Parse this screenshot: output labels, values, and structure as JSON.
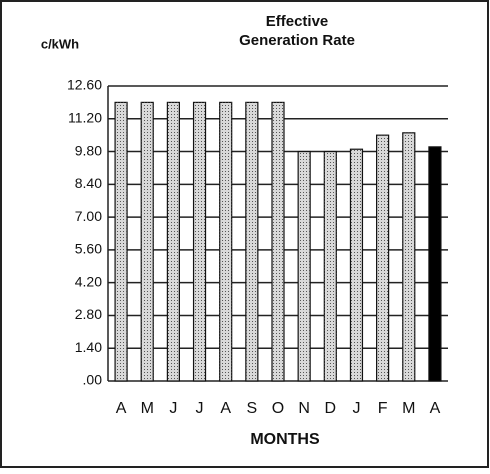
{
  "chart_data": {
    "type": "bar",
    "title": [
      "Effective",
      "Generation Rate"
    ],
    "y_label": "c/kWh",
    "x_label": "MONTHS",
    "categories": [
      "A",
      "M",
      "J",
      "J",
      "A",
      "S",
      "O",
      "N",
      "D",
      "J",
      "F",
      "M",
      "A"
    ],
    "values": [
      11.9,
      11.9,
      11.9,
      11.9,
      11.9,
      11.9,
      11.9,
      9.8,
      9.8,
      9.9,
      10.5,
      10.6,
      10.0
    ],
    "colors": [
      "#d9d9d9",
      "#d9d9d9",
      "#d9d9d9",
      "#d9d9d9",
      "#d9d9d9",
      "#d9d9d9",
      "#d9d9d9",
      "#d9d9d9",
      "#d9d9d9",
      "#d9d9d9",
      "#d9d9d9",
      "#d9d9d9",
      "#000000"
    ],
    "ylim": [
      0,
      12.6
    ],
    "yticks": [
      {
        "value": 0,
        "label": ".00"
      },
      {
        "value": 1.4,
        "label": "1.40"
      },
      {
        "value": 2.8,
        "label": "2.80"
      },
      {
        "value": 4.2,
        "label": "4.20"
      },
      {
        "value": 5.6,
        "label": "5.60"
      },
      {
        "value": 7.0,
        "label": "7.00"
      },
      {
        "value": 8.4,
        "label": "8.40"
      },
      {
        "value": 9.8,
        "label": "9.80"
      },
      {
        "value": 11.2,
        "label": "11.20"
      },
      {
        "value": 12.6,
        "label": "12.60"
      }
    ],
    "grid": true
  }
}
